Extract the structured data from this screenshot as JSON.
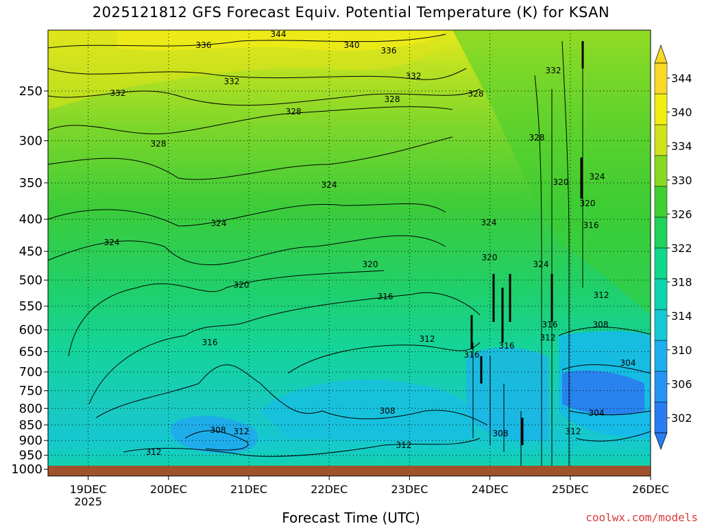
{
  "title": "2025121812 GFS Forecast Equiv. Potential Temperature (K) for KSAN",
  "xlabel": "Forecast Time (UTC)",
  "credit": "coolwx.com/models",
  "chart_data": {
    "type": "heatmap",
    "title": "2025121812 GFS Forecast Equiv. Potential Temperature (K) for KSAN",
    "xlabel": "Forecast Time (UTC)",
    "ylabel": "",
    "x_ticks": [
      {
        "label": "19DEC",
        "sublabel": "2025",
        "day": 19
      },
      {
        "label": "20DEC",
        "day": 20
      },
      {
        "label": "21DEC",
        "day": 21
      },
      {
        "label": "22DEC",
        "day": 22
      },
      {
        "label": "23DEC",
        "day": 23
      },
      {
        "label": "24DEC",
        "day": 24
      },
      {
        "label": "25DEC",
        "day": 25
      },
      {
        "label": "26DEC",
        "day": 26
      }
    ],
    "x_range_days": [
      18.5,
      26.0
    ],
    "y_levels_hPa": [
      250,
      300,
      350,
      400,
      450,
      500,
      550,
      600,
      650,
      700,
      750,
      800,
      850,
      900,
      950,
      1000
    ],
    "y_scale": "log",
    "y_range_hPa": [
      200,
      1025
    ],
    "colorbar": {
      "labels": [
        302,
        306,
        310,
        314,
        318,
        322,
        326,
        330,
        334,
        340,
        344
      ],
      "colors": [
        "#2a7cf0",
        "#2496f2",
        "#1eb0ee",
        "#16c8d6",
        "#10d4b0",
        "#10d88a",
        "#20d25a",
        "#3ed032",
        "#8ad824",
        "#d0e21c",
        "#f2ee14",
        "#f8d828"
      ],
      "extend": "both"
    },
    "contour_labels": [
      "344",
      "340",
      "336",
      "336",
      "332",
      "332",
      "332",
      "332",
      "328",
      "328",
      "328",
      "328",
      "328",
      "324",
      "324",
      "324",
      "324",
      "324",
      "320",
      "320",
      "320",
      "320",
      "316",
      "316",
      "316",
      "316",
      "316",
      "316",
      "312",
      "312",
      "312",
      "312",
      "312",
      "312",
      "308",
      "308",
      "308",
      "308",
      "304",
      "304",
      "324",
      "320",
      "312"
    ],
    "surface_band": "ground",
    "grid": "dotted"
  }
}
